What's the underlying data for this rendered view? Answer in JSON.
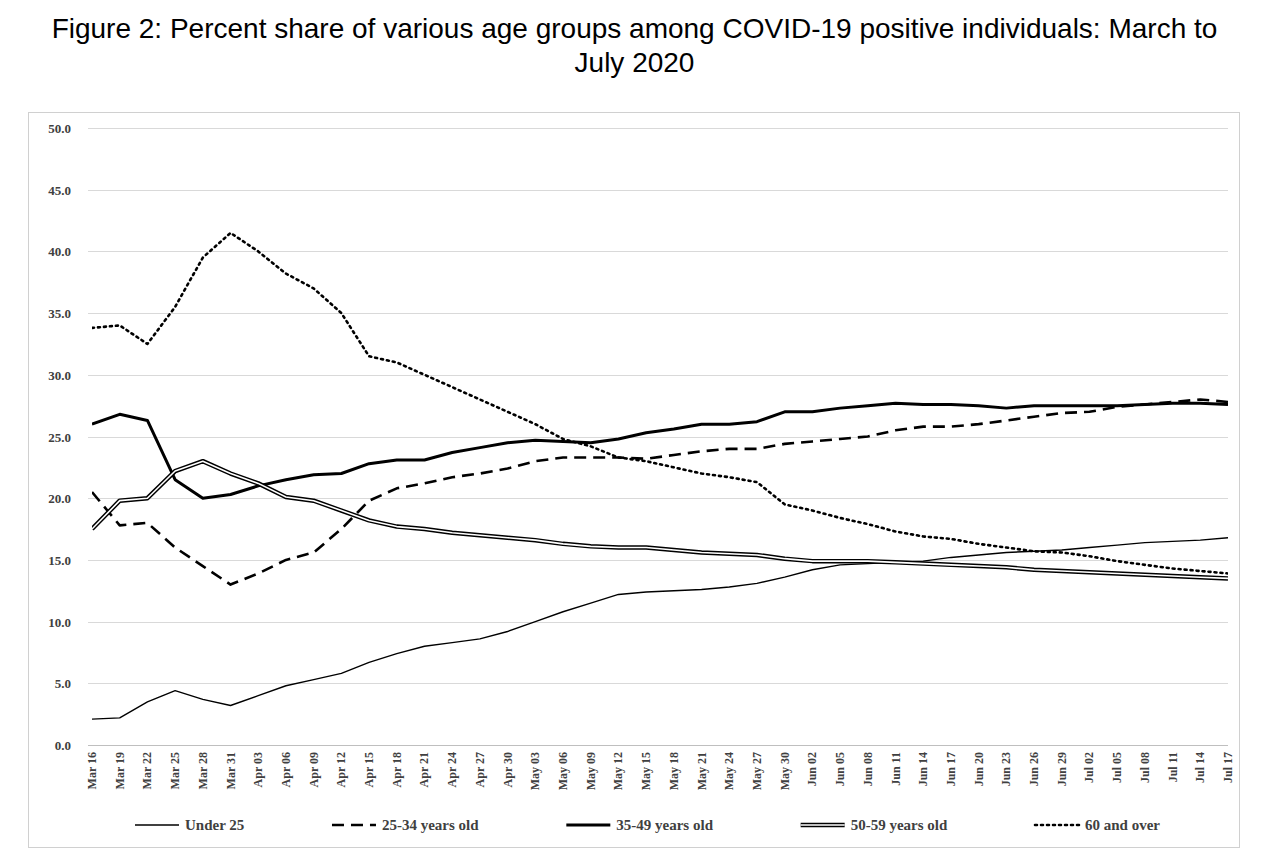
{
  "chart_data": {
    "type": "line",
    "title": "Figure 2: Percent share of various age groups among COVID-19 positive individuals: March to July 2020",
    "x": [
      "Mar 16",
      "Mar 19",
      "Mar 22",
      "Mar 25",
      "Mar 28",
      "Mar 31",
      "Apr 03",
      "Apr 06",
      "Apr 09",
      "Apr 12",
      "Apr 15",
      "Apr 18",
      "Apr 21",
      "Apr 24",
      "Apr 27",
      "Apr 30",
      "May 03",
      "May 06",
      "May 09",
      "May 12",
      "May 15",
      "May 18",
      "May 21",
      "May 24",
      "May 27",
      "May 30",
      "Jun 02",
      "Jun 05",
      "Jun 08",
      "Jun 11",
      "Jun 14",
      "Jun 17",
      "Jun 20",
      "Jun 23",
      "Jun 26",
      "Jun 29",
      "Jul 02",
      "Jul 05",
      "Jul 08",
      "Jul 11",
      "Jul 14",
      "Jul 17"
    ],
    "ylim": [
      0,
      50
    ],
    "yticks": [
      {
        "value": 0,
        "label": "0.0"
      },
      {
        "value": 5,
        "label": "5.0"
      },
      {
        "value": 10,
        "label": "10.0"
      },
      {
        "value": 15,
        "label": "15.0"
      },
      {
        "value": 20,
        "label": "20.0"
      },
      {
        "value": 25,
        "label": "25.0"
      },
      {
        "value": 30,
        "label": "30.0"
      },
      {
        "value": 35,
        "label": "35.0"
      },
      {
        "value": 40,
        "label": "40.0"
      },
      {
        "value": 45,
        "label": "45.0"
      },
      {
        "value": 50,
        "label": "50.0"
      }
    ],
    "grid": true,
    "legend": "bottom",
    "series": [
      {
        "name": "Under 25",
        "color": "#000000",
        "line_style": "thin",
        "values": [
          2.1,
          2.2,
          3.5,
          4.4,
          3.7,
          3.2,
          4.0,
          4.8,
          5.3,
          5.8,
          6.7,
          7.4,
          8.0,
          8.3,
          8.6,
          9.2,
          10.0,
          10.8,
          11.5,
          12.2,
          12.4,
          12.5,
          12.6,
          12.8,
          13.1,
          13.6,
          14.2,
          14.6,
          14.7,
          14.8,
          14.9,
          15.2,
          15.4,
          15.6,
          15.7,
          15.8,
          16.0,
          16.2,
          16.4,
          16.5,
          16.6,
          16.8
        ]
      },
      {
        "name": "25-34 years old",
        "color": "#000000",
        "line_style": "dashed",
        "values": [
          20.5,
          17.8,
          18.0,
          16.0,
          14.5,
          13.0,
          13.9,
          15.0,
          15.6,
          17.5,
          19.8,
          20.8,
          21.2,
          21.7,
          22.0,
          22.4,
          23.0,
          23.3,
          23.3,
          23.3,
          23.2,
          23.5,
          23.8,
          24.0,
          24.0,
          24.4,
          24.6,
          24.8,
          25.0,
          25.5,
          25.8,
          25.8,
          26.0,
          26.3,
          26.6,
          26.9,
          27.0,
          27.4,
          27.6,
          27.8,
          28.0,
          27.8
        ]
      },
      {
        "name": "35-49 years old",
        "color": "#000000",
        "line_style": "thick",
        "values": [
          26.0,
          26.8,
          26.3,
          21.5,
          20.0,
          20.3,
          21.0,
          21.5,
          21.9,
          22.0,
          22.8,
          23.1,
          23.1,
          23.7,
          24.1,
          24.5,
          24.7,
          24.6,
          24.5,
          24.8,
          25.3,
          25.6,
          26.0,
          26.0,
          26.2,
          27.0,
          27.0,
          27.3,
          27.5,
          27.7,
          27.6,
          27.6,
          27.5,
          27.3,
          27.5,
          27.5,
          27.5,
          27.5,
          27.6,
          27.7,
          27.7,
          27.6
        ]
      },
      {
        "name": "50-59 years old",
        "color": "#000000",
        "line_style": "double",
        "values": [
          17.5,
          19.8,
          20.0,
          22.2,
          23.0,
          22.0,
          21.2,
          20.1,
          19.8,
          19.0,
          18.2,
          17.7,
          17.5,
          17.2,
          17.0,
          16.8,
          16.6,
          16.3,
          16.1,
          16.0,
          16.0,
          15.8,
          15.6,
          15.5,
          15.4,
          15.1,
          14.9,
          14.9,
          14.9,
          14.8,
          14.7,
          14.6,
          14.5,
          14.4,
          14.2,
          14.1,
          14.0,
          13.9,
          13.8,
          13.7,
          13.6,
          13.5
        ]
      },
      {
        "name": "60 and over",
        "color": "#000000",
        "line_style": "dotted",
        "values": [
          33.8,
          34.0,
          32.5,
          35.5,
          39.5,
          41.5,
          40.0,
          38.2,
          37.0,
          35.0,
          31.5,
          31.0,
          30.0,
          29.0,
          28.0,
          27.0,
          26.0,
          24.8,
          24.2,
          23.3,
          23.0,
          22.5,
          22.0,
          21.7,
          21.3,
          19.5,
          19.0,
          18.4,
          17.9,
          17.3,
          16.9,
          16.7,
          16.3,
          16.0,
          15.7,
          15.6,
          15.3,
          14.9,
          14.6,
          14.3,
          14.1,
          13.9
        ]
      }
    ]
  }
}
